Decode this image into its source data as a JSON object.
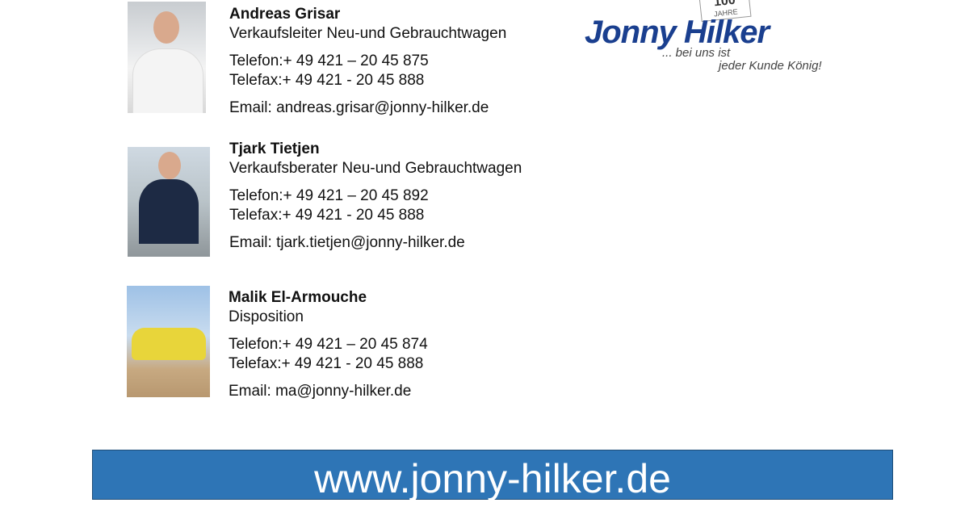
{
  "contacts": [
    {
      "name": "Andreas Grisar",
      "role": "Verkaufsleiter Neu-und Gebrauchtwagen",
      "phone": "Telefon:+ 49 421 – 20 45 875",
      "fax": "Telefax:+ 49 421 -  20 45 888",
      "email": "Email: andreas.grisar@jonny-hilker.de"
    },
    {
      "name": "Tjark Tietjen",
      "role": "Verkaufsberater Neu-und Gebrauchtwagen",
      "phone": "Telefon:+ 49 421 – 20 45 892",
      "fax": "Telefax:+ 49 421 -  20 45 888",
      "email": "Email: tjark.tietjen@jonny-hilker.de"
    },
    {
      "name": "Malik El-Armouche",
      "role": "Disposition",
      "phone": "Telefon:+ 49 421 – 20 45 874",
      "fax": "Telefax:+ 49 421 -  20 45 888",
      "email": "Email: ma@jonny-hilker.de"
    }
  ],
  "logo": {
    "brand": "Jonny Hilker",
    "badge_number": "100",
    "badge_text": "JAHRE",
    "slogan_line1": "... bei uns ist",
    "slogan_line2": "jeder Kunde König!"
  },
  "banner": {
    "text": "www.jonny-hilker.de",
    "color": "#2e75b6"
  }
}
